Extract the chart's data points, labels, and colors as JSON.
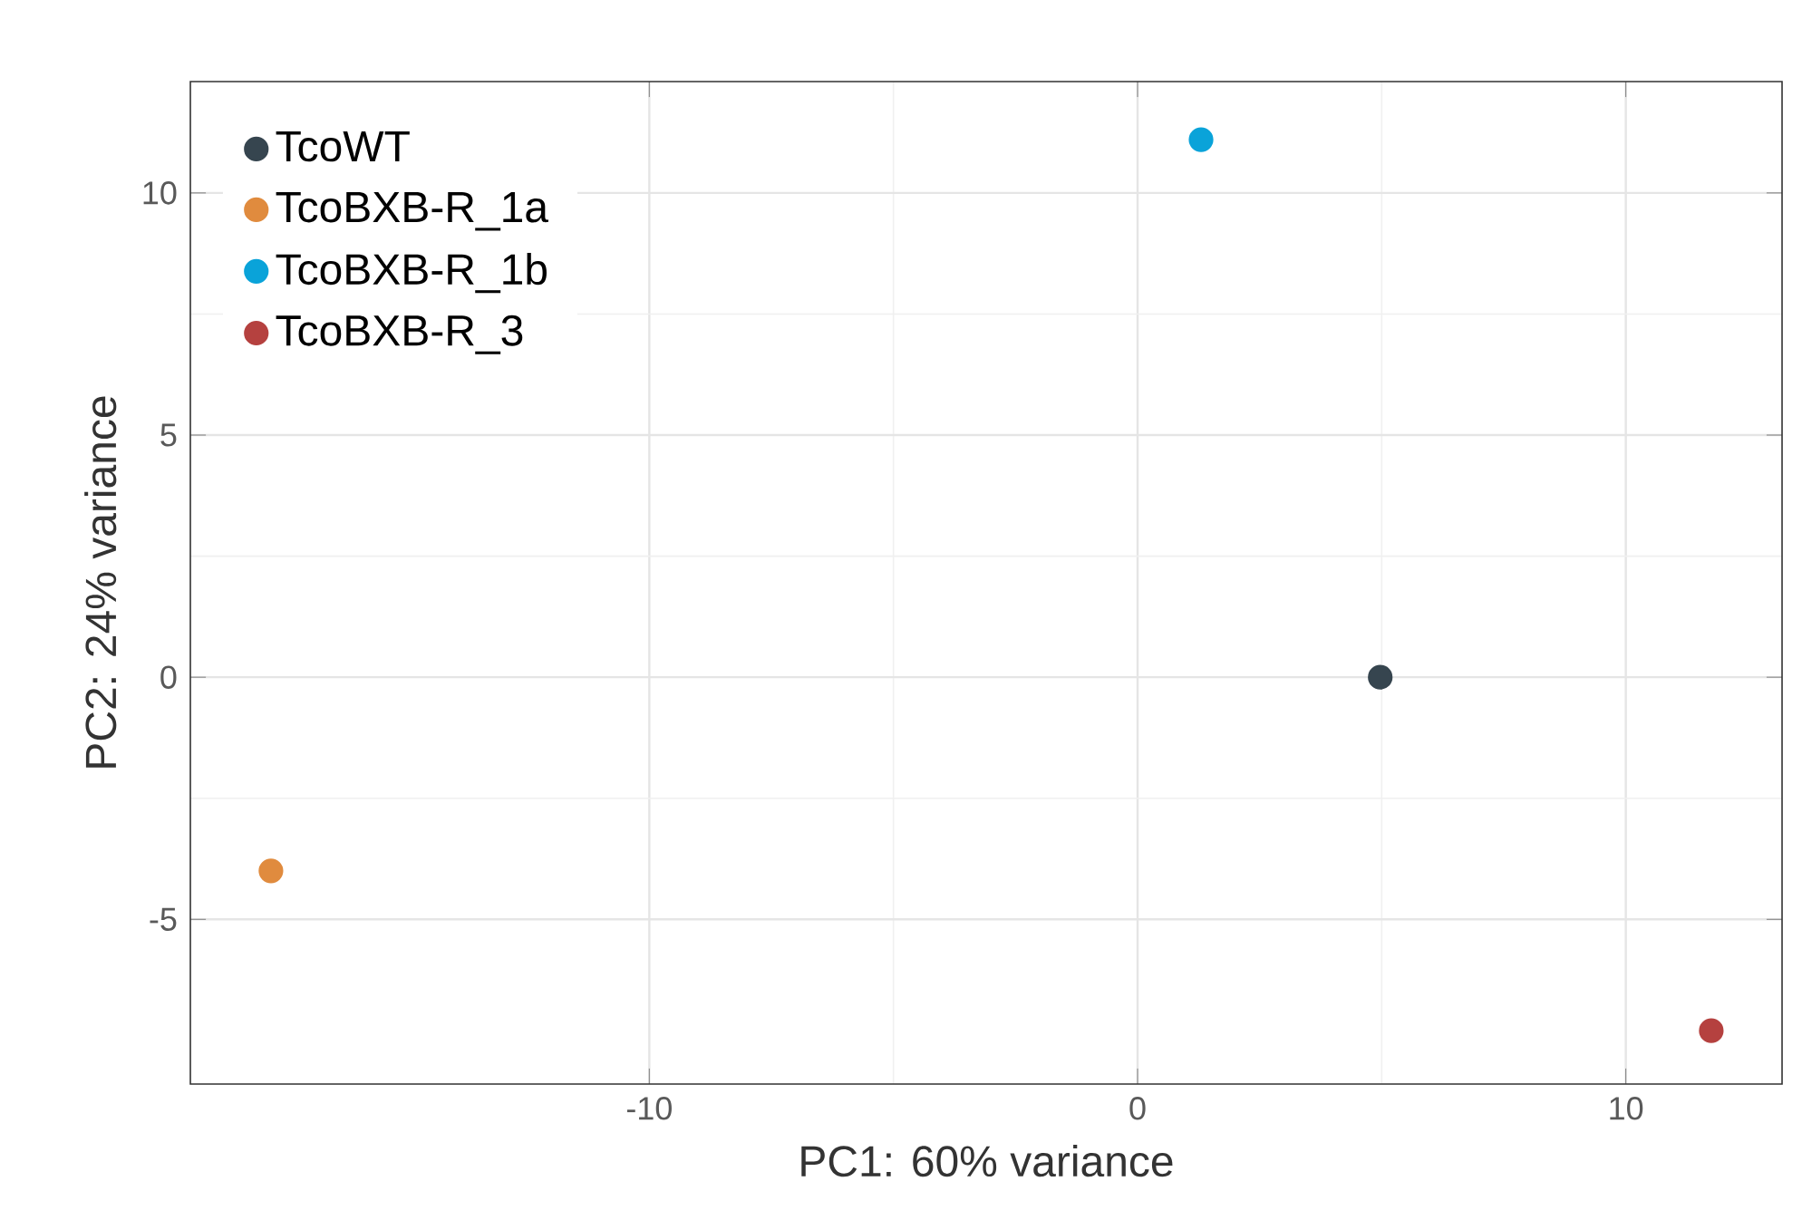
{
  "chart_data": {
    "type": "scatter",
    "xlabel": "PC1: 60% variance",
    "ylabel": "PC2: 24% variance",
    "xlim": [
      -19.4,
      13.2
    ],
    "ylim": [
      -8.4,
      12.3
    ],
    "xticks": [
      -10,
      0,
      10
    ],
    "yticks": [
      -5,
      0,
      5,
      10
    ],
    "grid": true,
    "legend": "top left",
    "series": [
      {
        "name": "TcoWT",
        "color": "#36454f",
        "x": [
          4.97
        ],
        "values": [
          0.0
        ]
      },
      {
        "name": "TcoBXB-R_1a",
        "color": "#e08b3e",
        "x": [
          -17.75
        ],
        "values": [
          -4.0
        ]
      },
      {
        "name": "TcoBXB-R_1b",
        "color": "#0aa3d9",
        "x": [
          1.3
        ],
        "values": [
          11.1
        ]
      },
      {
        "name": "TcoBXB-R_3",
        "color": "#b5413f",
        "x": [
          11.75
        ],
        "values": [
          -7.3
        ]
      }
    ]
  }
}
